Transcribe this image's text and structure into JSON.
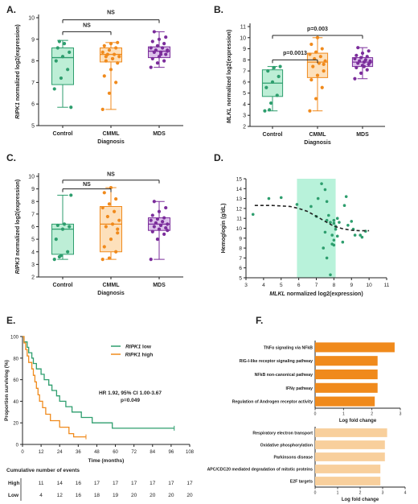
{
  "colors": {
    "control": "#2e9e6e",
    "cmml": "#f08a1c",
    "mds": "#7b2d9b",
    "green_fill": "#bdeed6",
    "orange_fill": "#fde0bb",
    "purple_fill": "#dcc2ea",
    "shade": "#b8f2da",
    "bar_up": "#f08a1c",
    "bar_down": "#f8cf9c"
  },
  "panels": {
    "A": {
      "letter": "A.",
      "ylabel": "RIPK1 normalized log2(expression)",
      "ylabel_gene": "RIPK1",
      "ylabel_rest": " normalized log2(expression)",
      "xlabel": "Diagnosis",
      "sig": [
        "NS",
        "NS"
      ]
    },
    "B": {
      "letter": "B.",
      "ylabel": "MLKL normalized log2(expression)",
      "ylabel_gene": "MLKL",
      "ylabel_rest": " normalized log2(expression)",
      "xlabel": "Diagnosis",
      "sig": [
        "p=0.0013",
        "p=0.003"
      ]
    },
    "C": {
      "letter": "C.",
      "ylabel": "RIPK3 normalized log2(expression)",
      "ylabel_gene": "RIPK3",
      "ylabel_rest": " normalized log2(expression)",
      "xlabel": "Diagnosis",
      "sig": [
        "NS",
        "NS"
      ]
    },
    "D": {
      "letter": "D.",
      "ylabel": "Hemoglogin (g/dL)",
      "xlabel": "MLKL normalized log2(expression)",
      "xlabel_gene": "MLKL",
      "xlabel_rest": " normalized log2(expression)"
    },
    "E": {
      "letter": "E.",
      "ylabel": "Proportion surviving (%)",
      "xlabel": "Time (months)",
      "legend_low": "RIPK1 low",
      "legend_high": "RIPK1 high",
      "legend_gene": "RIPK1",
      "legend_low_rest": " low",
      "legend_high_rest": " high",
      "hr_line1": "HR 1.92, 95% CI 1.00-3.67",
      "hr_line2": "p=0.049",
      "risk_title": "Cumulative number of events",
      "risk_high_label": "High",
      "risk_low_label": "Low"
    },
    "F": {
      "letter": "F.",
      "xlabel": "Log fold change"
    }
  },
  "chart_data": [
    {
      "type": "box",
      "panel": "A",
      "categories": [
        "Control",
        "CMML",
        "MDS"
      ],
      "ylim": [
        5,
        10
      ],
      "yticks": [
        5,
        6,
        7,
        8,
        9,
        10
      ],
      "boxes": [
        {
          "q1": 6.9,
          "median": 8.15,
          "q3": 8.6,
          "min": 5.85,
          "max": 8.95
        },
        {
          "q1": 7.95,
          "median": 8.3,
          "q3": 8.6,
          "min": 5.75,
          "max": 8.85
        },
        {
          "q1": 8.15,
          "median": 8.45,
          "q3": 8.65,
          "min": 7.7,
          "max": 9.35
        }
      ],
      "points": [
        [
          6.7,
          7.2,
          7.6,
          8.0,
          8.2,
          8.4,
          8.6,
          8.8,
          5.85,
          8.9
        ],
        [
          5.75,
          6.5,
          7.0,
          7.3,
          7.6,
          7.9,
          8.0,
          8.1,
          8.2,
          8.3,
          8.3,
          8.4,
          8.5,
          8.6,
          8.7,
          8.8,
          8.85,
          8.2,
          8.1
        ],
        [
          7.7,
          7.9,
          8.0,
          8.1,
          8.2,
          8.3,
          8.4,
          8.4,
          8.5,
          8.5,
          8.6,
          8.6,
          8.7,
          8.8,
          8.9,
          9.0,
          9.1,
          9.35,
          8.3,
          8.45
        ]
      ]
    },
    {
      "type": "box",
      "panel": "B",
      "categories": [
        "Control",
        "CMML",
        "MDS"
      ],
      "ylim": [
        2,
        11
      ],
      "yticks": [
        2,
        3,
        4,
        5,
        6,
        7,
        8,
        9,
        10,
        11
      ],
      "boxes": [
        {
          "q1": 4.7,
          "median": 5.9,
          "q3": 7.1,
          "min": 3.4,
          "max": 7.4
        },
        {
          "q1": 6.4,
          "median": 7.8,
          "q3": 8.6,
          "min": 3.4,
          "max": 10.0
        },
        {
          "q1": 7.4,
          "median": 7.8,
          "q3": 8.2,
          "min": 6.3,
          "max": 9.1
        }
      ],
      "points": [
        [
          3.4,
          4.1,
          4.8,
          5.5,
          6.0,
          6.5,
          7.0,
          7.3,
          7.4,
          3.5
        ],
        [
          3.4,
          4.5,
          5.5,
          6.2,
          6.6,
          7.0,
          7.4,
          7.7,
          7.9,
          8.1,
          8.3,
          8.5,
          8.7,
          9.0,
          9.4,
          10.0,
          7.6
        ],
        [
          6.3,
          6.8,
          7.1,
          7.3,
          7.5,
          7.6,
          7.7,
          7.8,
          7.8,
          7.9,
          8.0,
          8.1,
          8.2,
          8.3,
          8.4,
          8.6,
          8.8,
          9.1,
          7.4,
          7.9
        ]
      ]
    },
    {
      "type": "box",
      "panel": "C",
      "categories": [
        "Control",
        "CMML",
        "MDS"
      ],
      "ylim": [
        2,
        10
      ],
      "yticks": [
        2,
        3,
        4,
        5,
        6,
        7,
        8,
        9,
        10
      ],
      "boxes": [
        {
          "q1": 3.8,
          "median": 5.8,
          "q3": 6.2,
          "min": 3.4,
          "max": 8.5
        },
        {
          "q1": 4.0,
          "median": 6.2,
          "q3": 7.6,
          "min": 3.4,
          "max": 9.1
        },
        {
          "q1": 5.7,
          "median": 6.2,
          "q3": 6.7,
          "min": 3.4,
          "max": 8.0
        }
      ],
      "points": [
        [
          3.4,
          3.7,
          4.0,
          5.0,
          5.8,
          6.0,
          6.1,
          6.2,
          8.5,
          3.6
        ],
        [
          3.4,
          3.5,
          4.0,
          4.4,
          5.0,
          5.5,
          6.0,
          6.2,
          6.5,
          6.8,
          7.2,
          7.5,
          7.8,
          8.2,
          8.7,
          9.1,
          5.8
        ],
        [
          3.4,
          5.0,
          5.4,
          5.6,
          5.8,
          5.9,
          6.0,
          6.1,
          6.2,
          6.3,
          6.4,
          6.5,
          6.6,
          6.7,
          6.9,
          7.2,
          7.5,
          8.0,
          6.1,
          5.7
        ]
      ]
    },
    {
      "type": "scatter",
      "panel": "D",
      "xlim": [
        3,
        11
      ],
      "ylim": [
        5,
        15
      ],
      "xticks": [
        3,
        4,
        5,
        6,
        7,
        8,
        9,
        10,
        11
      ],
      "yticks": [
        5,
        6,
        7,
        8,
        9,
        10,
        11,
        12,
        13,
        14,
        15
      ],
      "shade_x": [
        5.9,
        8.1
      ],
      "points": [
        [
          3.4,
          11.4
        ],
        [
          4.3,
          13.0
        ],
        [
          5.0,
          13.1
        ],
        [
          5.9,
          12.4
        ],
        [
          6.7,
          12.2
        ],
        [
          7.1,
          13.0
        ],
        [
          7.3,
          14.5
        ],
        [
          7.5,
          13.9
        ],
        [
          7.6,
          12.7
        ],
        [
          7.7,
          11.3
        ],
        [
          7.6,
          10.8
        ],
        [
          7.5,
          9.6
        ],
        [
          7.4,
          8.0
        ],
        [
          7.6,
          7.0
        ],
        [
          7.8,
          5.3
        ],
        [
          7.9,
          9.3
        ],
        [
          8.0,
          10.5
        ],
        [
          8.0,
          10.8
        ],
        [
          8.0,
          8.8
        ],
        [
          7.9,
          8.4
        ],
        [
          8.1,
          10.2
        ],
        [
          8.2,
          11.0
        ],
        [
          8.3,
          10.6
        ],
        [
          8.0,
          8.3
        ],
        [
          8.6,
          12.3
        ],
        [
          8.7,
          13.2
        ],
        [
          8.8,
          10.3
        ],
        [
          9.0,
          10.7
        ],
        [
          9.1,
          9.9
        ],
        [
          9.2,
          9.3
        ],
        [
          9.5,
          9.3
        ],
        [
          9.8,
          9.7
        ],
        [
          9.6,
          9.1
        ],
        [
          8.5,
          8.6
        ],
        [
          8.1,
          9.9
        ],
        [
          7.0,
          11.2
        ],
        [
          7.8,
          10.6
        ],
        [
          8.2,
          9.2
        ]
      ],
      "fit": [
        [
          3.5,
          12.3
        ],
        [
          4.5,
          12.3
        ],
        [
          5.5,
          12.2
        ],
        [
          6.0,
          12.0
        ],
        [
          6.5,
          11.7
        ],
        [
          7.0,
          11.2
        ],
        [
          7.5,
          10.7
        ],
        [
          8.0,
          10.2
        ],
        [
          8.5,
          9.95
        ],
        [
          9.0,
          9.8
        ],
        [
          9.5,
          9.75
        ],
        [
          10.0,
          9.75
        ]
      ]
    },
    {
      "type": "line",
      "panel": "E",
      "subtype": "kaplan-meier",
      "xlim": [
        0,
        108
      ],
      "ylim": [
        0,
        100
      ],
      "xticks": [
        0,
        12,
        24,
        36,
        48,
        60,
        72,
        84,
        96,
        108
      ],
      "yticks": [
        0,
        20,
        40,
        60,
        80,
        100
      ],
      "series": [
        {
          "name": "RIPK1 low",
          "steps": [
            [
              0,
              100
            ],
            [
              1,
              95
            ],
            [
              3,
              90
            ],
            [
              4,
              85
            ],
            [
              6,
              80
            ],
            [
              7,
              75
            ],
            [
              9,
              70
            ],
            [
              12,
              65
            ],
            [
              14,
              60
            ],
            [
              17,
              55
            ],
            [
              19,
              50
            ],
            [
              22,
              45
            ],
            [
              24,
              40
            ],
            [
              28,
              35
            ],
            [
              32,
              30
            ],
            [
              38,
              25
            ],
            [
              45,
              20
            ],
            [
              50,
              20
            ],
            [
              58,
              15
            ],
            [
              98,
              15
            ]
          ]
        },
        {
          "name": "RIPK1 high",
          "steps": [
            [
              0,
              100
            ],
            [
              1,
              94
            ],
            [
              2,
              88
            ],
            [
              3,
              82
            ],
            [
              4,
              76
            ],
            [
              6,
              70
            ],
            [
              7,
              64
            ],
            [
              8,
              58
            ],
            [
              9,
              52
            ],
            [
              10,
              46
            ],
            [
              11,
              40
            ],
            [
              13,
              34
            ],
            [
              15,
              28
            ],
            [
              18,
              22
            ],
            [
              24,
              16
            ],
            [
              30,
              10
            ],
            [
              33,
              7
            ],
            [
              41,
              7
            ]
          ]
        }
      ],
      "risk_times": [
        0,
        12,
        24,
        36,
        48,
        60,
        72,
        84,
        96,
        108
      ],
      "risk_high": [
        "",
        "11",
        "14",
        "16",
        "17",
        "17",
        "17",
        "17",
        "17",
        "17"
      ],
      "risk_low": [
        "",
        "4",
        "12",
        "16",
        "18",
        "19",
        "20",
        "20",
        "20",
        "20"
      ]
    },
    {
      "type": "bar",
      "panel": "F",
      "orientation": "horizontal",
      "subtitle": "",
      "groups": [
        {
          "categories": [
            "TNFα signaling via NFkB",
            "RIG-I-like receptor signaling pathway",
            "NFkB non-canonical pathway",
            "IFNγ pathway",
            "Regulation of Androgen receptor activity"
          ],
          "values": [
            2.8,
            2.2,
            2.2,
            2.2,
            2.1
          ],
          "xlim": [
            0,
            3
          ],
          "xticks": [
            0,
            1,
            2,
            3
          ]
        },
        {
          "categories": [
            "Respiratory electron transport",
            "Oxidative phosphorylation",
            "Parkinsons disease",
            "APC/CDC20 mediated degradation of mitotic proteins",
            "E2F targets"
          ],
          "values": [
            3.2,
            3.1,
            3.1,
            2.9,
            2.9
          ],
          "xlim": [
            0,
            4
          ],
          "xticks": [
            0,
            1,
            2,
            3,
            4
          ]
        }
      ]
    }
  ]
}
